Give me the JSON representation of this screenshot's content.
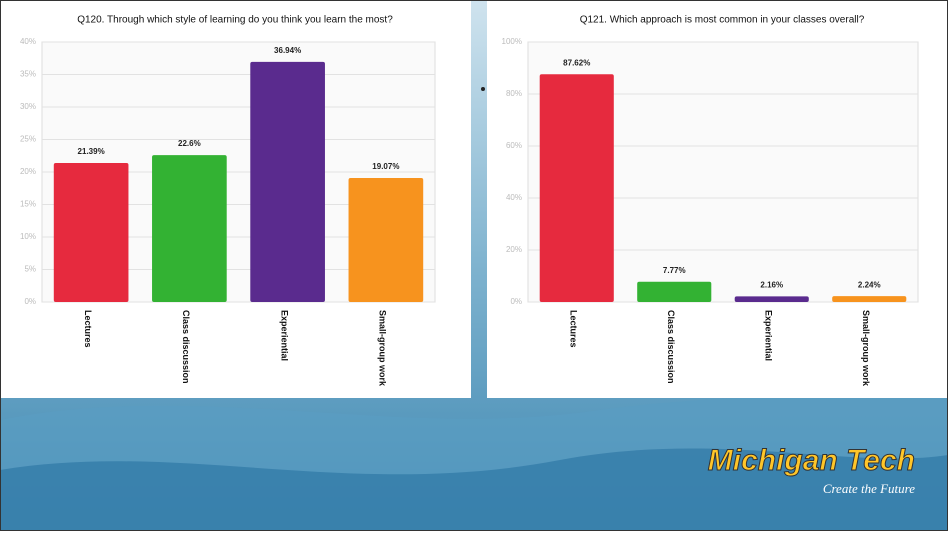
{
  "chart_data": [
    {
      "type": "bar",
      "title": "Q120. Through which style of learning do you think you learn the most?",
      "categories": [
        "Lectures",
        "Class discussion",
        "Experiential",
        "Small-group work"
      ],
      "values": [
        21.39,
        22.6,
        36.94,
        19.07
      ],
      "value_labels": [
        "21.39%",
        "22.6%",
        "36.94%",
        "19.07%"
      ],
      "colors": [
        "#e62a3e",
        "#33b233",
        "#5a2b8e",
        "#f7931e"
      ],
      "ylim": [
        0,
        40
      ],
      "yticks": [
        {
          "value": 0,
          "label": "0%"
        },
        {
          "value": 5,
          "label": "5%"
        },
        {
          "value": 10,
          "label": "10%"
        },
        {
          "value": 15,
          "label": "15%"
        },
        {
          "value": 20,
          "label": "20%"
        },
        {
          "value": 25,
          "label": "25%"
        },
        {
          "value": 30,
          "label": "30%"
        },
        {
          "value": 35,
          "label": "35%"
        },
        {
          "value": 40,
          "label": "40%"
        }
      ],
      "grid": true
    },
    {
      "type": "bar",
      "title": "Q121. Which approach is most common in your classes overall?",
      "categories": [
        "Lectures",
        "Class discussion",
        "Experiential",
        "Small-group work"
      ],
      "values": [
        87.62,
        7.77,
        2.16,
        2.24
      ],
      "value_labels": [
        "87.62%",
        "7.77%",
        "2.16%",
        "2.24%"
      ],
      "colors": [
        "#e62a3e",
        "#33b233",
        "#5a2b8e",
        "#f7931e"
      ],
      "ylim": [
        0,
        100
      ],
      "yticks": [
        {
          "value": 0,
          "label": "0%"
        },
        {
          "value": 20,
          "label": "20%"
        },
        {
          "value": 40,
          "label": "40%"
        },
        {
          "value": 60,
          "label": "60%"
        },
        {
          "value": 80,
          "label": "80%"
        },
        {
          "value": 100,
          "label": "100%"
        }
      ],
      "grid": true
    }
  ],
  "logo": {
    "name": "Michigan Tech",
    "tagline": "Create the Future"
  }
}
